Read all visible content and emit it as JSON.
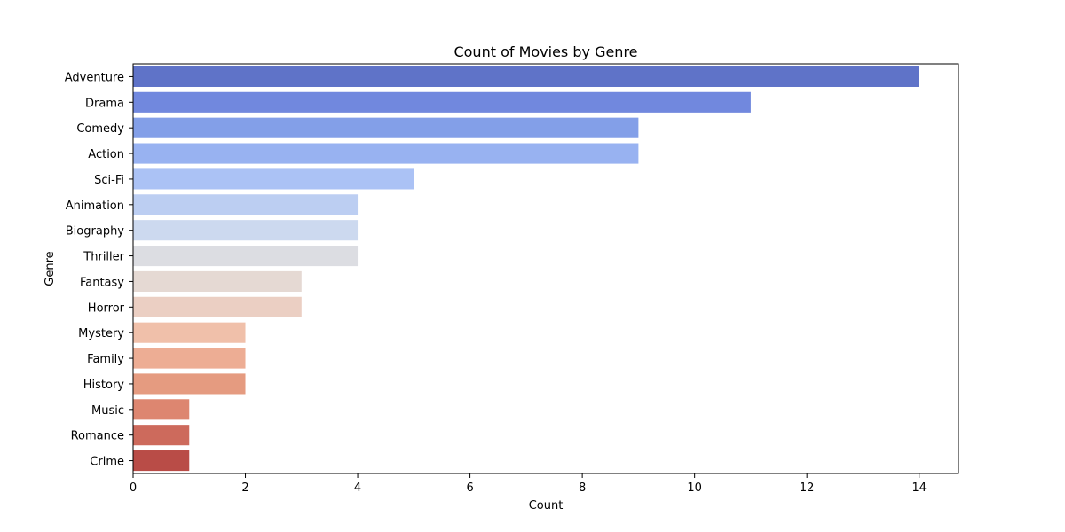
{
  "chart_data": {
    "type": "bar",
    "orientation": "horizontal",
    "title": "Count of Movies by Genre",
    "xlabel": "Count",
    "ylabel": "Genre",
    "xlim": [
      0,
      14.7
    ],
    "xticks": [
      0,
      2,
      4,
      6,
      8,
      10,
      12,
      14
    ],
    "grid": false,
    "categories": [
      "Adventure",
      "Drama",
      "Comedy",
      "Action",
      "Sci-Fi",
      "Animation",
      "Biography",
      "Thriller",
      "Fantasy",
      "Horror",
      "Mystery",
      "Family",
      "History",
      "Music",
      "Romance",
      "Crime"
    ],
    "values": [
      14,
      11,
      9,
      9,
      5,
      4,
      4,
      4,
      3,
      3,
      2,
      2,
      2,
      1,
      1,
      1
    ],
    "colors": [
      "#5f73c8",
      "#7188de",
      "#839fe8",
      "#98b2f1",
      "#abc2f5",
      "#bccef2",
      "#ccd9ef",
      "#dcdde2",
      "#e5d9d3",
      "#ebcfc3",
      "#f0c0aa",
      "#edad94",
      "#e59b80",
      "#dd8670",
      "#cd6a5c",
      "#b94c47"
    ]
  }
}
